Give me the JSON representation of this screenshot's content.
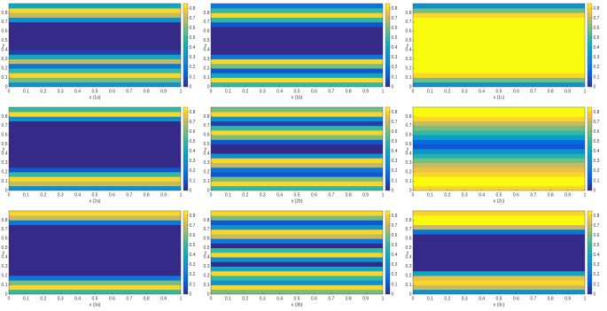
{
  "chart_data": [
    {
      "type": "heatmap",
      "xlabel": "x (1a)",
      "ylabel": "y",
      "xlim": [
        0,
        1
      ],
      "xticks": [
        0,
        0.1,
        0.2,
        0.3,
        0.4,
        0.5,
        0.6,
        0.7,
        0.8,
        0.9,
        1
      ],
      "ylim": [
        0,
        0.9
      ],
      "yticks": [
        0,
        0.1,
        0.2,
        0.3,
        0.4,
        0.5,
        0.6,
        0.7,
        0.8
      ],
      "y": [
        0.025,
        0.075,
        0.125,
        0.175,
        0.225,
        0.275,
        0.325,
        0.375,
        0.425,
        0.475,
        0.525,
        0.575,
        0.625,
        0.675,
        0.725,
        0.775,
        0.825,
        0.875
      ],
      "values": [
        0.3,
        0.6,
        0.8,
        0.5,
        0.2,
        0.7,
        0.4,
        0.05,
        0,
        0,
        0,
        0,
        0,
        0,
        0.3,
        0.7,
        0.8,
        0.4
      ],
      "clim": [
        0,
        0.85
      ],
      "cticks": [
        0,
        0.1,
        0.2,
        0.3,
        0.4,
        0.5,
        0.6,
        0.7,
        0.8
      ]
    },
    {
      "type": "heatmap",
      "xlabel": "x (1b)",
      "ylabel": "y",
      "xlim": [
        0,
        1
      ],
      "xticks": [
        0,
        0.1,
        0.2,
        0.3,
        0.4,
        0.5,
        0.6,
        0.7,
        0.8,
        0.9,
        1
      ],
      "ylim": [
        0,
        0.9
      ],
      "yticks": [
        0,
        0.1,
        0.2,
        0.3,
        0.4,
        0.5,
        0.6,
        0.7,
        0.8
      ],
      "y": [
        0.025,
        0.075,
        0.125,
        0.175,
        0.225,
        0.275,
        0.325,
        0.375,
        0.425,
        0.475,
        0.525,
        0.575,
        0.625,
        0.675,
        0.725,
        0.775,
        0.825,
        0.875
      ],
      "values": [
        0.5,
        0.8,
        0.4,
        0.1,
        0.6,
        0.8,
        0.2,
        0,
        0,
        0,
        0,
        0,
        0,
        0.1,
        0.5,
        0.8,
        0.5,
        0.2
      ],
      "clim": [
        0,
        0.85
      ],
      "cticks": [
        0,
        0.1,
        0.2,
        0.3,
        0.4,
        0.5,
        0.6,
        0.7,
        0.8
      ]
    },
    {
      "type": "heatmap",
      "xlabel": "x (1c)",
      "ylabel": "y",
      "xlim": [
        0,
        1
      ],
      "xticks": [
        0,
        0.1,
        0.2,
        0.3,
        0.4,
        0.5,
        0.6,
        0.7,
        0.8,
        0.9,
        1
      ],
      "ylim": [
        0,
        0.9
      ],
      "yticks": [
        0,
        0.1,
        0.2,
        0.3,
        0.4,
        0.5,
        0.6,
        0.7,
        0.8
      ],
      "y": [
        0.025,
        0.075,
        0.125,
        0.175,
        0.225,
        0.275,
        0.325,
        0.375,
        0.425,
        0.475,
        0.525,
        0.575,
        0.625,
        0.675,
        0.725,
        0.775,
        0.825,
        0.875
      ],
      "values": [
        0.3,
        0.6,
        0.8,
        0.85,
        0.85,
        0.85,
        0.85,
        0.85,
        0.85,
        0.85,
        0.85,
        0.85,
        0.85,
        0.85,
        0.85,
        0.8,
        0.6,
        0.3
      ],
      "clim": [
        0,
        0.85
      ],
      "cticks": [
        0,
        0.1,
        0.2,
        0.3,
        0.4,
        0.5,
        0.6,
        0.7,
        0.8
      ]
    },
    {
      "type": "heatmap",
      "xlabel": "x (2a)",
      "ylabel": "y",
      "xlim": [
        0,
        1
      ],
      "xticks": [
        0,
        0.1,
        0.2,
        0.3,
        0.4,
        0.5,
        0.6,
        0.7,
        0.8,
        0.9,
        1
      ],
      "ylim": [
        0,
        0.9
      ],
      "yticks": [
        0,
        0.1,
        0.2,
        0.3,
        0.4,
        0.5,
        0.6,
        0.7,
        0.8
      ],
      "y": [
        0.025,
        0.075,
        0.125,
        0.175,
        0.225,
        0.275,
        0.325,
        0.375,
        0.425,
        0.475,
        0.525,
        0.575,
        0.625,
        0.675,
        0.725,
        0.775,
        0.825,
        0.875
      ],
      "values": [
        0.3,
        0.7,
        0.8,
        0.5,
        0.1,
        0,
        0,
        0,
        0,
        0,
        0,
        0,
        0,
        0,
        0,
        0.3,
        0.8,
        0.5
      ],
      "clim": [
        0,
        0.85
      ],
      "cticks": [
        0,
        0.1,
        0.2,
        0.3,
        0.4,
        0.5,
        0.6,
        0.7,
        0.8
      ]
    },
    {
      "type": "heatmap",
      "xlabel": "x (2b)",
      "ylabel": "y",
      "xlim": [
        0,
        1
      ],
      "xticks": [
        0,
        0.1,
        0.2,
        0.3,
        0.4,
        0.5,
        0.6,
        0.7,
        0.8,
        0.9,
        1
      ],
      "ylim": [
        0,
        0.9
      ],
      "yticks": [
        0,
        0.1,
        0.2,
        0.3,
        0.4,
        0.5,
        0.6,
        0.7,
        0.8
      ],
      "y": [
        0.025,
        0.075,
        0.125,
        0.175,
        0.225,
        0.275,
        0.325,
        0.375,
        0.425,
        0.475,
        0.525,
        0.575,
        0.625,
        0.675,
        0.725,
        0.775,
        0.825,
        0.875
      ],
      "values": [
        0.5,
        0.8,
        0.6,
        0.1,
        0.2,
        0.7,
        0.8,
        0.3,
        0,
        0,
        0.1,
        0.6,
        0.8,
        0.5,
        0.05,
        0.3,
        0.8,
        0.6
      ],
      "clim": [
        0,
        0.85
      ],
      "cticks": [
        0,
        0.1,
        0.2,
        0.3,
        0.4,
        0.5,
        0.6,
        0.7,
        0.8
      ]
    },
    {
      "type": "heatmap",
      "xlabel": "x (2c)",
      "ylabel": "y",
      "xlim": [
        0,
        1
      ],
      "xticks": [
        0,
        0.1,
        0.2,
        0.3,
        0.4,
        0.5,
        0.6,
        0.7,
        0.8,
        0.9,
        1
      ],
      "ylim": [
        0,
        0.9
      ],
      "yticks": [
        0,
        0.1,
        0.2,
        0.3,
        0.4,
        0.5,
        0.6,
        0.7,
        0.8
      ],
      "y": [
        0.025,
        0.075,
        0.125,
        0.175,
        0.225,
        0.275,
        0.325,
        0.375,
        0.425,
        0.475,
        0.525,
        0.575,
        0.625,
        0.675,
        0.725,
        0.775,
        0.825,
        0.875
      ],
      "values": [
        0.8,
        0.85,
        0.85,
        0.8,
        0.75,
        0.7,
        0.6,
        0.45,
        0.3,
        0.1,
        0.15,
        0.35,
        0.5,
        0.6,
        0.7,
        0.8,
        0.85,
        0.85
      ],
      "clim": [
        0,
        0.85
      ],
      "cticks": [
        0,
        0.1,
        0.2,
        0.3,
        0.4,
        0.5,
        0.6,
        0.7,
        0.8
      ]
    },
    {
      "type": "heatmap",
      "xlabel": "x (3a)",
      "ylabel": "y",
      "xlim": [
        0,
        1
      ],
      "xticks": [
        0,
        0.1,
        0.2,
        0.3,
        0.4,
        0.5,
        0.6,
        0.7,
        0.8,
        0.9,
        1
      ],
      "ylim": [
        0,
        0.9
      ],
      "yticks": [
        0,
        0.1,
        0.2,
        0.3,
        0.4,
        0.5,
        0.6,
        0.7,
        0.8
      ],
      "y": [
        0.025,
        0.075,
        0.125,
        0.175,
        0.225,
        0.275,
        0.325,
        0.375,
        0.425,
        0.475,
        0.525,
        0.575,
        0.625,
        0.675,
        0.725,
        0.775,
        0.825,
        0.875
      ],
      "values": [
        0.5,
        0.8,
        0.6,
        0.2,
        0,
        0,
        0,
        0,
        0,
        0,
        0,
        0,
        0,
        0,
        0,
        0.2,
        0.7,
        0.8
      ],
      "clim": [
        0,
        0.85
      ],
      "cticks": [
        0,
        0.1,
        0.2,
        0.3,
        0.4,
        0.5,
        0.6,
        0.7,
        0.8
      ]
    },
    {
      "type": "heatmap",
      "xlabel": "x (3b)",
      "ylabel": "y",
      "xlim": [
        0,
        1
      ],
      "xticks": [
        0,
        0.1,
        0.2,
        0.3,
        0.4,
        0.5,
        0.6,
        0.7,
        0.8,
        0.9,
        1
      ],
      "ylim": [
        0,
        0.9
      ],
      "yticks": [
        0,
        0.1,
        0.2,
        0.3,
        0.4,
        0.5,
        0.6,
        0.7,
        0.8
      ],
      "y": [
        0.025,
        0.075,
        0.125,
        0.175,
        0.225,
        0.275,
        0.325,
        0.375,
        0.425,
        0.475,
        0.525,
        0.575,
        0.625,
        0.675,
        0.725,
        0.775,
        0.825,
        0.875
      ],
      "values": [
        0.6,
        0.8,
        0.3,
        0.5,
        0.8,
        0.4,
        0,
        0.3,
        0.8,
        0.5,
        0,
        0.2,
        0.7,
        0.8,
        0.3,
        0.1,
        0.6,
        0.8
      ],
      "clim": [
        0,
        0.85
      ],
      "cticks": [
        0,
        0.1,
        0.2,
        0.3,
        0.4,
        0.5,
        0.6,
        0.7,
        0.8
      ]
    },
    {
      "type": "heatmap",
      "xlabel": "x (3c)",
      "ylabel": "y",
      "xlim": [
        0,
        1
      ],
      "xticks": [
        0,
        0.1,
        0.2,
        0.3,
        0.4,
        0.5,
        0.6,
        0.7,
        0.8,
        0.9,
        1
      ],
      "ylim": [
        0,
        0.9
      ],
      "yticks": [
        0,
        0.1,
        0.2,
        0.3,
        0.4,
        0.5,
        0.6,
        0.7,
        0.8
      ],
      "y": [
        0.025,
        0.075,
        0.125,
        0.175,
        0.225,
        0.275,
        0.325,
        0.375,
        0.425,
        0.475,
        0.525,
        0.575,
        0.625,
        0.675,
        0.725,
        0.775,
        0.825,
        0.875
      ],
      "values": [
        0.3,
        0.7,
        0.8,
        0.75,
        0.4,
        0,
        0,
        0,
        0,
        0,
        0,
        0,
        0,
        0.2,
        0.7,
        0.85,
        0.85,
        0.8
      ],
      "clim": [
        0,
        0.85
      ],
      "cticks": [
        0,
        0.1,
        0.2,
        0.3,
        0.4,
        0.5,
        0.6,
        0.7,
        0.8
      ]
    }
  ]
}
